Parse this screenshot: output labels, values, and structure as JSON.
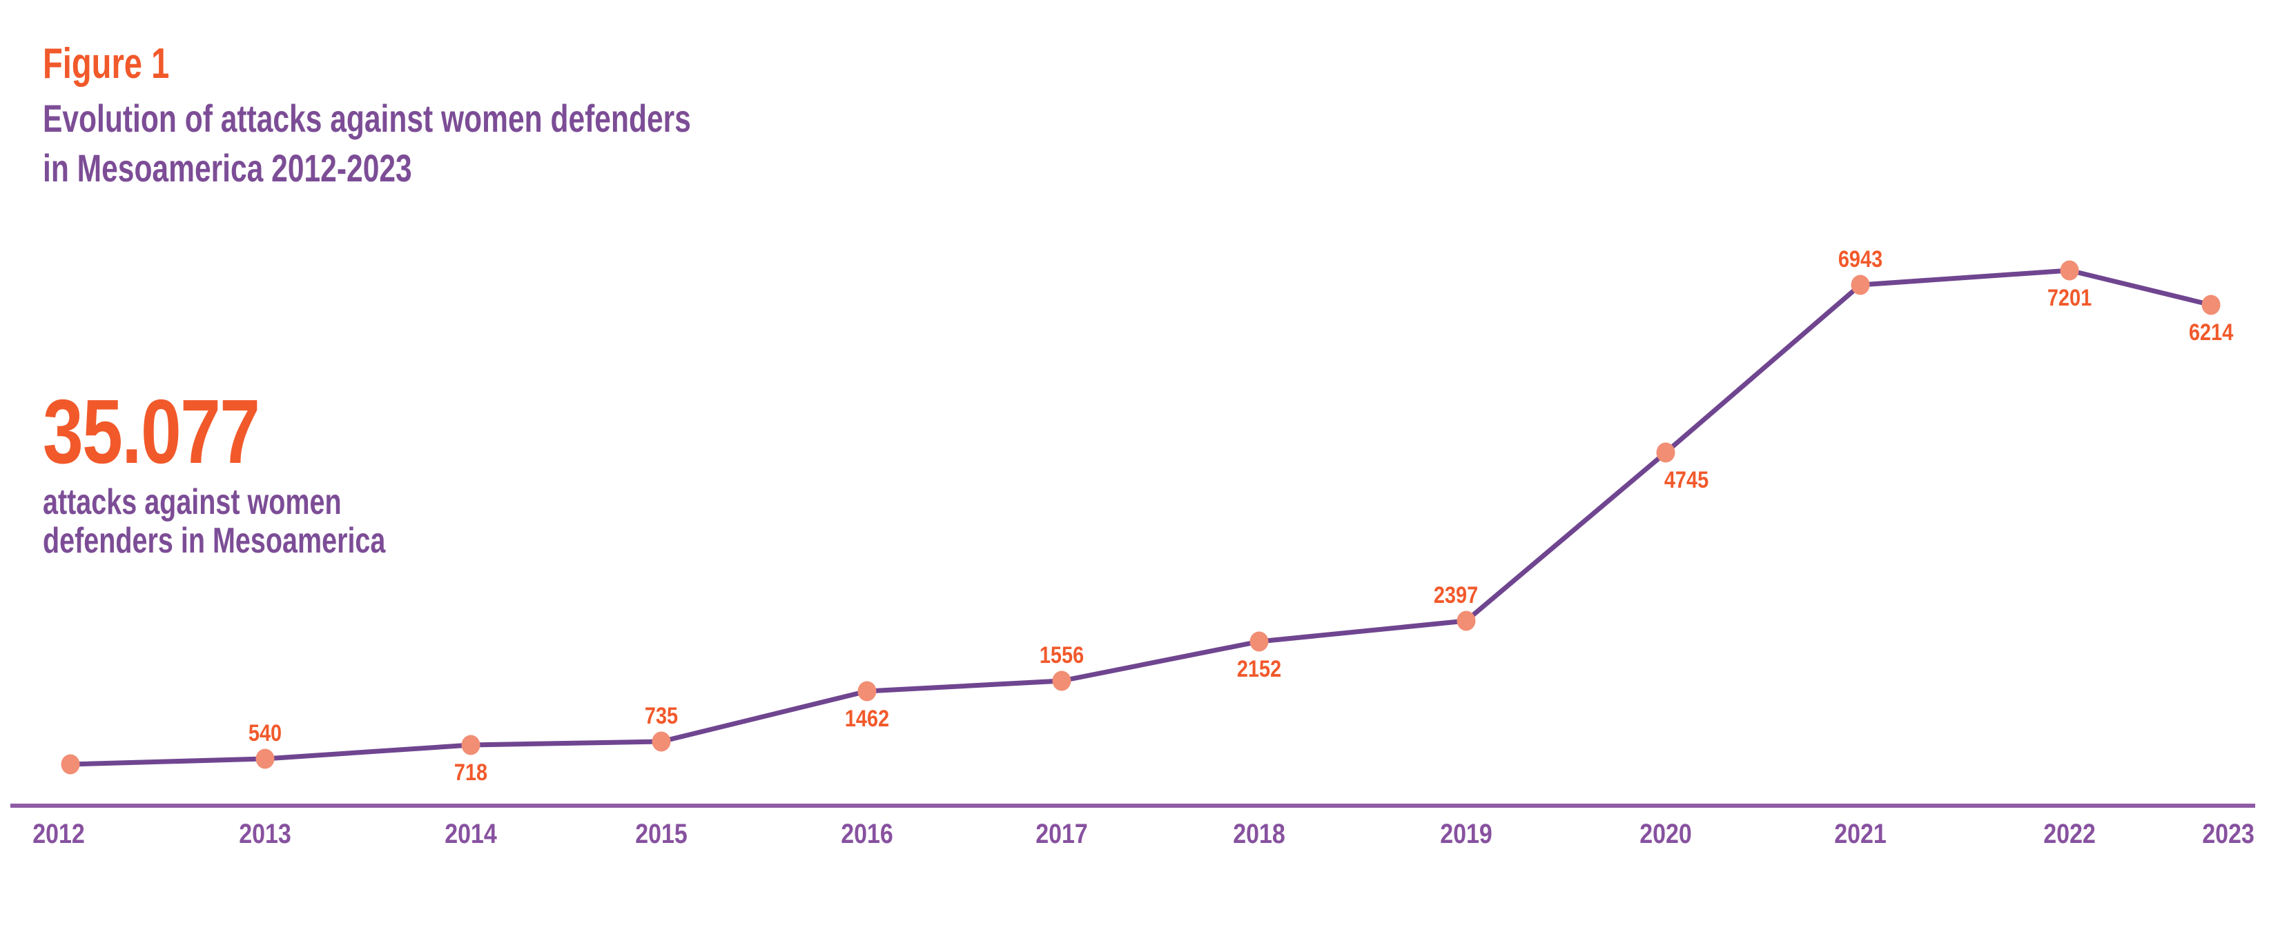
{
  "header": {
    "figure_label": "Figure 1",
    "title_line1": "Evolution of attacks against women defenders",
    "title_line2": "in Mesoamerica 2012-2023"
  },
  "stat": {
    "value": "35.077",
    "caption_line1": "attacks against women",
    "caption_line2": "defenders in Mesoamerica"
  },
  "chart_data": {
    "type": "line",
    "title": "Evolution of attacks against women defenders in Mesoamerica 2012-2023",
    "categories": [
      "2012",
      "2013",
      "2014",
      "2015",
      "2016",
      "2017",
      "2018",
      "2019",
      "2020",
      "2021",
      "2022",
      "2023"
    ],
    "values": [
      414,
      540,
      718,
      735,
      1462,
      1556,
      2152,
      2397,
      4745,
      6943,
      7201,
      6214
    ],
    "point_labels": [
      "",
      "540",
      "718",
      "735",
      "1462",
      "1556",
      "2152",
      "2397",
      "4745",
      "6943",
      "7201",
      "6214"
    ],
    "label_side": [
      "none",
      "above",
      "below",
      "above",
      "below",
      "above",
      "below",
      "above",
      "below",
      "above",
      "below",
      "below"
    ],
    "total_annotation": "35.077",
    "xlabel": "",
    "ylabel": "",
    "ylim": [
      0,
      7500
    ],
    "grid": false,
    "legend": "none",
    "colors": {
      "accent_orange": "#F1592B",
      "dot_salmon": "#F18E74",
      "line_purple": "#6F4590",
      "axis_purple": "#8E5BA5",
      "text_purple": "#7C4D96",
      "year_purple": "#87519F"
    }
  }
}
